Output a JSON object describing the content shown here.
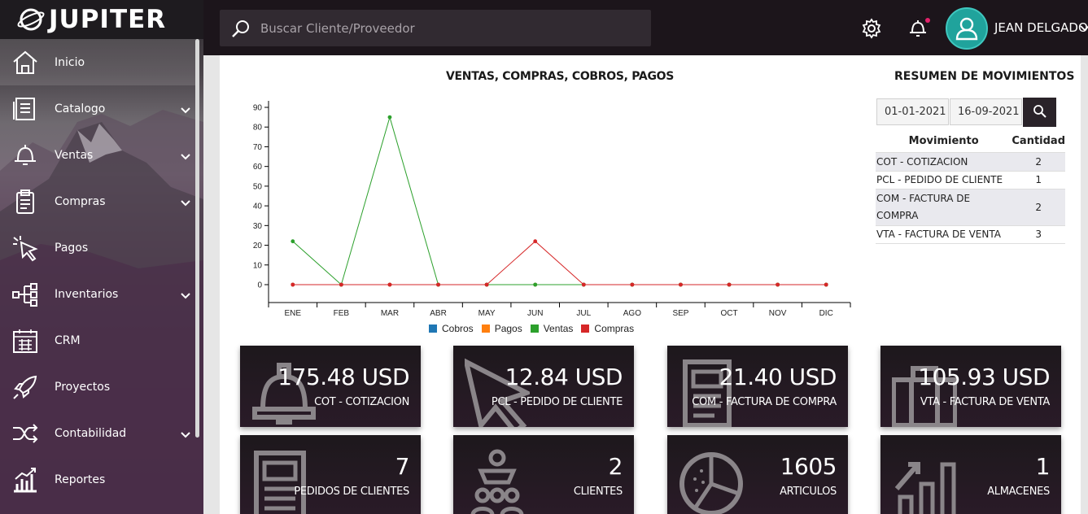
{
  "app": {
    "name": "JUPITER"
  },
  "search": {
    "placeholder": "Buscar Cliente/Proveedor"
  },
  "user": {
    "name": "JEAN DELGADO"
  },
  "sidebar": {
    "items": [
      {
        "label": "Inicio",
        "icon": "home-icon"
      },
      {
        "label": "Catalogo",
        "icon": "catalog-icon"
      },
      {
        "label": "Ventas",
        "icon": "bell-icon"
      },
      {
        "label": "Compras",
        "icon": "clipboard-icon"
      },
      {
        "label": "Pagos",
        "icon": "cursor-icon"
      },
      {
        "label": "Inventarios",
        "icon": "tree-icon"
      },
      {
        "label": "CRM",
        "icon": "calendar-icon"
      },
      {
        "label": "Proyectos",
        "icon": "rocket-icon"
      },
      {
        "label": "Contabilidad",
        "icon": "shuffle-icon"
      },
      {
        "label": "Reportes",
        "icon": "bar-chart-icon"
      }
    ]
  },
  "chart_data": {
    "type": "line",
    "title": "VENTAS, COMPRAS, COBROS, PAGOS",
    "categories": [
      "ENE",
      "FEB",
      "MAR",
      "ABR",
      "MAY",
      "JUN",
      "JUL",
      "AGO",
      "SEP",
      "OCT",
      "NOV",
      "DIC"
    ],
    "ylim": [
      0,
      90
    ],
    "yticks": [
      0,
      10,
      20,
      30,
      40,
      50,
      60,
      70,
      80,
      90
    ],
    "legend_position": "bottom",
    "series": [
      {
        "name": "Cobros",
        "color": "#1f77b4",
        "values": [
          0,
          0,
          0,
          0,
          0,
          0,
          0,
          0,
          0,
          0,
          0,
          0
        ]
      },
      {
        "name": "Pagos",
        "color": "#ff7f0e",
        "values": [
          0,
          0,
          0,
          0,
          0,
          0,
          0,
          0,
          0,
          0,
          0,
          0
        ]
      },
      {
        "name": "Ventas",
        "color": "#2ca02c",
        "values": [
          22,
          0,
          85,
          0,
          0,
          0,
          0,
          0,
          0,
          0,
          0,
          0
        ]
      },
      {
        "name": "Compras",
        "color": "#d62728",
        "values": [
          0,
          0,
          0,
          0,
          0,
          22,
          0,
          0,
          0,
          0,
          0,
          0
        ]
      }
    ]
  },
  "summary": {
    "title": "RESUMEN DE MOVIMIENTOS",
    "date_from": "01-01-2021",
    "date_to": "16-09-2021",
    "col_movimiento": "Movimiento",
    "col_cantidad": "Cantidad",
    "rows": [
      {
        "mov": "COT - COTIZACION",
        "qty": "2"
      },
      {
        "mov": "PCL - PEDIDO DE CLIENTE",
        "qty": "1"
      },
      {
        "mov": "COM - FACTURA DE COMPRA",
        "qty": "2"
      },
      {
        "mov": "VTA - FACTURA DE VENTA",
        "qty": "3"
      }
    ]
  },
  "cards": [
    {
      "value": "175.48 USD",
      "caption": "COT - COTIZACION",
      "icon": "bell-icon"
    },
    {
      "value": "12.84 USD",
      "caption": "PCL - PEDIDO DE CLIENTE",
      "icon": "cursor-icon"
    },
    {
      "value": "21.40 USD",
      "caption": "COM - FACTURA DE COMPRA",
      "icon": "document-icon"
    },
    {
      "value": "105.93 USD",
      "caption": "VTA - FACTURA DE VENTA",
      "icon": "briefcase-icon"
    },
    {
      "value": "7",
      "caption": "PEDIDOS DE CLIENTES",
      "icon": "list-document-icon"
    },
    {
      "value": "2",
      "caption": "CLIENTES",
      "icon": "users-icon"
    },
    {
      "value": "1605",
      "caption": "ARTICULOS",
      "icon": "pie-chart-icon"
    },
    {
      "value": "1",
      "caption": "ALMACENES",
      "icon": "growth-chart-icon"
    }
  ]
}
